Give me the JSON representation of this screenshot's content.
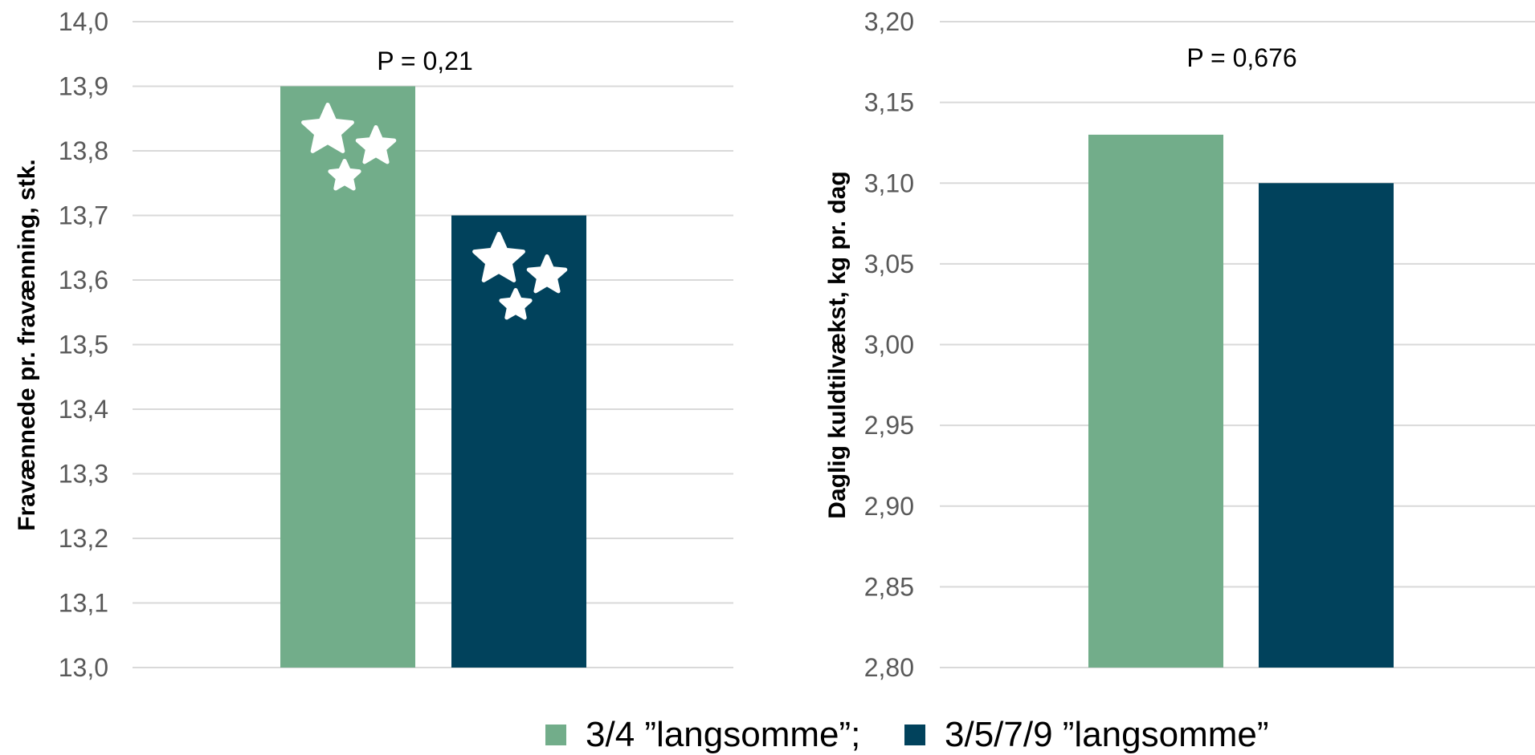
{
  "colors": {
    "series1": "#72ad8a",
    "series2": "#01425c",
    "grid": "#d9d9d9",
    "tick_text": "#595959"
  },
  "legend": {
    "item1": "3/4 ”langsomme”;",
    "item2": "3/5/7/9 ”langsomme”"
  },
  "chart_data": [
    {
      "type": "bar",
      "ylabel": "Fravænnede pr. fravænning, stk.",
      "annotation": "P = 0,21",
      "ylim": [
        13.0,
        14.0
      ],
      "ticks": [
        "13,0",
        "13,1",
        "13,2",
        "13,3",
        "13,4",
        "13,5",
        "13,6",
        "13,7",
        "13,8",
        "13,9",
        "14,0"
      ],
      "series": [
        {
          "name": "3/4 ”langsomme”",
          "values": [
            13.9
          ]
        },
        {
          "name": "3/5/7/9 ”langsomme”",
          "values": [
            13.7
          ]
        }
      ],
      "decoration": "star-icons",
      "grid": true
    },
    {
      "type": "bar",
      "ylabel": "Daglig kuldtilvækst, kg pr. dag",
      "annotation": "P = 0,676",
      "ylim": [
        2.8,
        3.2
      ],
      "ticks": [
        "2,80",
        "2,85",
        "2,90",
        "2,95",
        "3,00",
        "3,05",
        "3,10",
        "3,15",
        "3,20"
      ],
      "series": [
        {
          "name": "3/4 ”langsomme”",
          "values": [
            3.13
          ]
        },
        {
          "name": "3/5/7/9 ”langsomme”",
          "values": [
            3.1
          ]
        }
      ],
      "grid": true
    }
  ]
}
